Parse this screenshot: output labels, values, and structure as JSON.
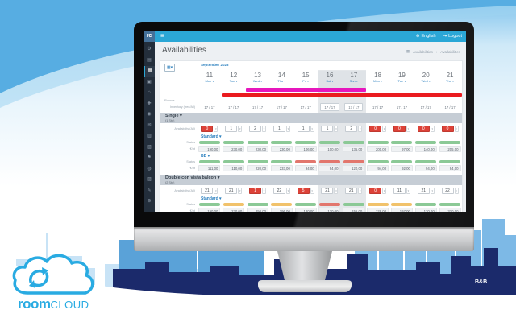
{
  "colors": {
    "accent": "#29abe2",
    "topbar": "#2ba7d6",
    "status_open": "#8bc996",
    "status_warn": "#f1c26b",
    "status_closed": "#e2766d",
    "sold_cell": "#dd4238",
    "event_magenta": "#e617bd",
    "event_red": "#ea1b1f"
  },
  "topbar": {
    "logo": "rc",
    "language": "English",
    "logout": "Logout"
  },
  "header": {
    "title": "Availabilities",
    "breadcrumb": [
      "Availabilities",
      "Availabilities"
    ]
  },
  "sidebar": {
    "items": [
      {
        "name": "settings",
        "glyph": "⚙"
      },
      {
        "name": "dashboard",
        "glyph": "▤"
      },
      {
        "name": "availabilities",
        "glyph": "▦",
        "active": true
      },
      {
        "name": "bookings",
        "glyph": "▣"
      },
      {
        "name": "rooms",
        "glyph": "⌂"
      },
      {
        "name": "offers",
        "glyph": "✚"
      },
      {
        "name": "users",
        "glyph": "◉"
      },
      {
        "name": "messages",
        "glyph": "✉"
      },
      {
        "name": "statistics",
        "glyph": "▥"
      },
      {
        "name": "billing",
        "glyph": "▧"
      },
      {
        "name": "channels",
        "glyph": "⚑"
      },
      {
        "name": "website",
        "glyph": "◍"
      },
      {
        "name": "reports",
        "glyph": "▨"
      },
      {
        "name": "tools",
        "glyph": "✎"
      },
      {
        "name": "help",
        "glyph": "⊕"
      }
    ]
  },
  "calendar": {
    "month": "September 2023",
    "days": [
      {
        "num": "11",
        "name": "Mon"
      },
      {
        "num": "12",
        "name": "Tue"
      },
      {
        "num": "13",
        "name": "Wed"
      },
      {
        "num": "14",
        "name": "Thu"
      },
      {
        "num": "15",
        "name": "Fri"
      },
      {
        "num": "16",
        "name": "Sat",
        "weekend": true
      },
      {
        "num": "17",
        "name": "Sun",
        "weekend": true
      },
      {
        "num": "18",
        "name": "Mon"
      },
      {
        "num": "19",
        "name": "Tue"
      },
      {
        "num": "20",
        "name": "Wed"
      },
      {
        "num": "21",
        "name": "Thu"
      }
    ],
    "events": [
      {
        "name": "event-magenta",
        "color": "#e617bd",
        "start": 2,
        "span": 5
      },
      {
        "name": "event-red",
        "color": "#ea1b1f",
        "start": 1,
        "span": 10
      }
    ]
  },
  "table": {
    "rooms_label": "Rooms",
    "inventory_label": "Inventory (free/All)",
    "inventory": [
      "17 / 17",
      "17 / 17",
      "17 / 17",
      "17 / 17",
      "17 / 17",
      "17 / 17",
      "17 / 17",
      "17 / 17",
      "17 / 17",
      "17 / 17",
      "17 / 17"
    ],
    "availability_label": "Availability (All)",
    "status_label": "Status",
    "price_label": "€/nt",
    "sections": [
      {
        "name": "Single",
        "subtitle": "(1 Std)",
        "availability": [
          {
            "v": "0",
            "sold": true
          },
          {
            "v": "1"
          },
          {
            "v": "2"
          },
          {
            "v": "1"
          },
          {
            "v": "1"
          },
          {
            "v": "1"
          },
          {
            "v": "2"
          },
          {
            "v": "0",
            "sold": true
          },
          {
            "v": "0",
            "sold": true
          },
          {
            "v": "0",
            "sold": true
          },
          {
            "v": "0",
            "sold": true
          }
        ],
        "rates": [
          {
            "name": "Standard",
            "bars": [
              "open",
              "open",
              "open",
              "open",
              "open",
              "open",
              "open",
              "open",
              "open",
              "open",
              "open"
            ],
            "prices": [
              "190,00",
              "230,00",
              "230,00",
              "230,00",
              "106,00",
              "100,00",
              "135,00",
              "200,00",
              "97,00",
              "140,00",
              "205,00"
            ]
          },
          {
            "name": "BB",
            "bars": [
              "open",
              "open",
              "open",
              "open",
              "closed",
              "closed",
              "closed",
              "open",
              "open",
              "open",
              "open"
            ],
            "prices": [
              "111,00",
              "110,00",
              "220,00",
              "233,00",
              "94,00",
              "94,00",
              "120,00",
              "94,00",
              "92,00",
              "94,00",
              "94,00"
            ]
          }
        ]
      },
      {
        "name": "Double con vista balcon",
        "subtitle": "(2 Std)",
        "availability": [
          {
            "v": "21"
          },
          {
            "v": "21"
          },
          {
            "v": "1",
            "sold": true
          },
          {
            "v": "22"
          },
          {
            "v": "5",
            "sold": true
          },
          {
            "v": "21"
          },
          {
            "v": "21"
          },
          {
            "v": "0",
            "sold": true
          },
          {
            "v": "11"
          },
          {
            "v": "21"
          },
          {
            "v": "22"
          }
        ],
        "rates": [
          {
            "name": "Standard",
            "bars": [
              "open",
              "warn",
              "open",
              "warn",
              "open",
              "closed",
              "open",
              "warn",
              "warn",
              "open",
              "open"
            ],
            "prices": [
              "190,00",
              "230,00",
              "250,00",
              "196,00",
              "120,00",
              "120,00",
              "155,00",
              "329,00",
              "197,00",
              "120,00",
              "320,00"
            ]
          }
        ]
      }
    ]
  },
  "branding": {
    "logo_room": "room",
    "logo_cloud": "CLOUD",
    "corner_badge": "B&B"
  }
}
